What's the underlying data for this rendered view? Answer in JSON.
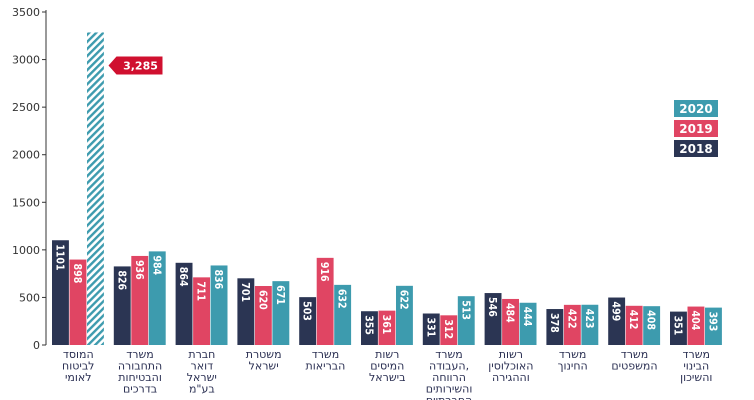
{
  "chart_data": {
    "type": "bar",
    "title": "",
    "xlabel": "",
    "ylabel": "",
    "ylim": [
      0,
      3500
    ],
    "yticks": [
      0,
      500,
      1000,
      1500,
      2000,
      2500,
      3000,
      3500
    ],
    "grid": false,
    "legend_position": "right",
    "categories": [
      [
        "המוסד",
        "לביטוח",
        "לאומי"
      ],
      [
        "משרד",
        "התחבורה",
        "והבטיחות",
        "בדרכים"
      ],
      [
        "חברת",
        "דואר",
        "ישראל",
        "בע\"מ"
      ],
      [
        "משטרת",
        "ישראל"
      ],
      [
        "משרד",
        "הבריאות"
      ],
      [
        "רשות",
        "המיסים",
        "בישראל"
      ],
      [
        "משרד",
        "העבודה,",
        "הרווחה",
        "והשירותים",
        "החברתיים"
      ],
      [
        "רשות",
        "האוכלוסין",
        "וההגירה"
      ],
      [
        "משרד",
        "החינוך"
      ],
      [
        "משרד",
        "המשפטים"
      ],
      [
        "משרד",
        "הבינוי",
        "והשיכון"
      ]
    ],
    "series": [
      {
        "name": "2018",
        "color": "#2b3553",
        "values": [
          1101,
          826,
          864,
          701,
          503,
          355,
          331,
          546,
          378,
          499,
          351
        ]
      },
      {
        "name": "2019",
        "color": "#e04563",
        "values": [
          898,
          936,
          711,
          620,
          916,
          361,
          312,
          484,
          422,
          412,
          404
        ]
      },
      {
        "name": "2020",
        "color": "#3d9bae",
        "values": [
          3285,
          984,
          836,
          671,
          632,
          622,
          513,
          444,
          423,
          408,
          393
        ]
      }
    ],
    "legend_order": [
      "2020",
      "2019",
      "2018"
    ],
    "highlight": {
      "series": "2020",
      "category_index": 0,
      "label": "3,285",
      "color": "#d0102f",
      "pattern": "hatched"
    }
  }
}
